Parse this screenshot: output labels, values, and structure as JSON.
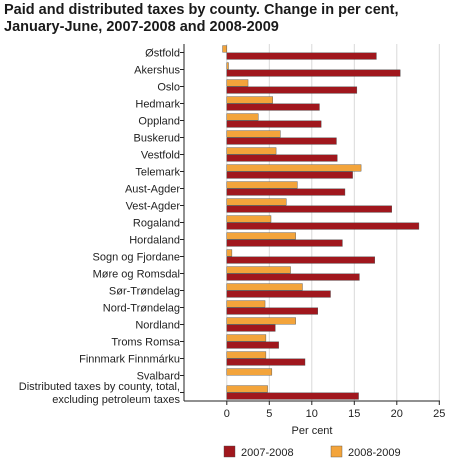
{
  "chart_data": {
    "type": "bar",
    "orientation": "horizontal",
    "title_line1": "Paid and distributed taxes by county. Change in per cent,",
    "title_line2": "January-June, 2007-2008 and 2008-2009",
    "xlabel": "Per cent",
    "ylabel": "",
    "xlim": [
      -2.5,
      25
    ],
    "xticks": [
      0,
      5,
      10,
      15,
      20,
      25
    ],
    "grid": true,
    "legend_position": "bottom",
    "categories": [
      "Østfold",
      "Akershus",
      "Oslo",
      "Hedmark",
      "Oppland",
      "Buskerud",
      "Vestfold",
      "Telemark",
      "Aust-Agder",
      "Vest-Agder",
      "Rogaland",
      "Hordaland",
      "Sogn og Fjordane",
      "Møre og Romsdal",
      "Sør-Trøndelag",
      "Nord-Trøndelag",
      "Nordland",
      "Troms Romsa",
      "Finnmark Finnmárku",
      "Svalbard",
      "Distributed taxes by county, total, excluding petroleum taxes"
    ],
    "category_label_lines": [
      [
        "Østfold"
      ],
      [
        "Akershus"
      ],
      [
        "Oslo"
      ],
      [
        "Hedmark"
      ],
      [
        "Oppland"
      ],
      [
        "Buskerud"
      ],
      [
        "Vestfold"
      ],
      [
        "Telemark"
      ],
      [
        "Aust-Agder"
      ],
      [
        "Vest-Agder"
      ],
      [
        "Rogaland"
      ],
      [
        "Hordaland"
      ],
      [
        "Sogn og Fjordane"
      ],
      [
        "Møre og Romsdal"
      ],
      [
        "Sør-Trøndelag"
      ],
      [
        "Nord-Trøndelag"
      ],
      [
        "Nordland"
      ],
      [
        "Troms Romsa"
      ],
      [
        "Finnmark Finnmárku"
      ],
      [
        "Svalbard"
      ],
      [
        "Distributed taxes by county, total,",
        "excluding petroleum taxes"
      ]
    ],
    "series": [
      {
        "name": "2007-2008",
        "color": "#a0171d",
        "values": [
          17.6,
          20.4,
          15.3,
          10.9,
          11.1,
          12.9,
          13.0,
          14.8,
          13.9,
          19.4,
          22.6,
          13.6,
          17.4,
          15.6,
          12.2,
          10.7,
          5.7,
          6.1,
          9.2,
          null,
          15.5
        ]
      },
      {
        "name": "2008-2009",
        "color": "#f3a43b",
        "values": [
          -0.5,
          0.2,
          2.5,
          5.4,
          3.7,
          6.3,
          5.8,
          15.8,
          8.3,
          7.0,
          5.2,
          8.1,
          0.6,
          7.5,
          8.9,
          4.5,
          8.1,
          4.6,
          4.6,
          5.3,
          4.8
        ]
      }
    ]
  }
}
